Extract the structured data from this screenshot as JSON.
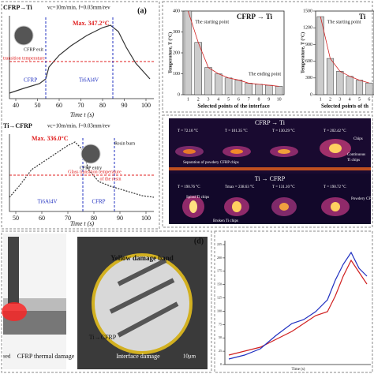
{
  "panel_a": {
    "label": "(a)",
    "top": {
      "title": "CFRP→Ti",
      "params": "vc=10m/min, f=0.03mm/rev",
      "max": "Max. 347.2°C",
      "inset": "CFRP exit",
      "threshold": "transition temperature",
      "phase1": "CFRP",
      "phase2": "Ti6Al4V",
      "xlabel": "Time t (s)",
      "xticks": [
        40,
        50,
        60,
        70,
        80,
        90,
        100
      ]
    },
    "bottom": {
      "title": "Ti→CFRP",
      "params": "vc=10m/min, f=0.03mm/rev",
      "max": "Max. 336.0°C",
      "inset": "CFRP entry",
      "note": "Resin burn",
      "threshold": "Glass transition temperature",
      "threshold2": "of the resin",
      "phase1": "Ti6Al4V",
      "phase2": "CFRP",
      "xlabel": "Time t (s)",
      "xticks": [
        50,
        60,
        70,
        80,
        90,
        100
      ]
    }
  },
  "panel_b": {
    "chart1": {
      "title": "CFRP → Ti",
      "ylabel": "Temperature, T (°C)",
      "xlabel": "Selected points of the interface",
      "start": "The starting point",
      "end": "The ending point",
      "categories": [
        1,
        2,
        3,
        4,
        5,
        6,
        7,
        8,
        9,
        10
      ],
      "values": [
        400,
        250,
        130,
        100,
        80,
        70,
        55,
        50,
        45,
        40
      ],
      "yticks": [
        0,
        100,
        200,
        300,
        400
      ]
    },
    "chart2": {
      "title": "Ti",
      "ylabel": "Temperature, T (°C)",
      "xlabel": "Selected points of th",
      "start": "The starting point",
      "categories": [
        1,
        2,
        3,
        4,
        5,
        6
      ],
      "values": [
        1400,
        650,
        420,
        330,
        260,
        210
      ],
      "yticks": [
        0,
        300,
        600,
        900,
        1200,
        1500
      ]
    }
  },
  "panel_c": {
    "top_title": "CFRP → Ti",
    "top_temps": [
      "T = 72.10 °C",
      "T = 101.35 °C",
      "T = 130.29 °C",
      "T = 202.42 °C"
    ],
    "top_notes": [
      "Separation of powdery CFRP chips",
      "Chips",
      "Continuous",
      "Ti chips"
    ],
    "bottom_title": "Ti → CFRP",
    "bottom_temps": [
      "T = 190.76 °C",
      "Tmax = 238.63 °C",
      "T = 131.10 °C",
      "T = 190.72 °C"
    ],
    "bottom_notes": [
      "Spiral Ti chips",
      "Broken Ti chips",
      "Powdery CF"
    ]
  },
  "panel_d": {
    "label": "(d)",
    "band": "Yellow damage band",
    "direction": "Ti→CFRP",
    "interface": "Interface damage",
    "scale": "10μm",
    "thermal": "CFRP thermal damage",
    "left": "sed"
  },
  "panel_e": {
    "yticks": [
      0,
      25,
      50,
      75,
      100,
      125,
      150,
      175,
      200,
      225
    ],
    "xlabel": "Time (s)"
  }
}
